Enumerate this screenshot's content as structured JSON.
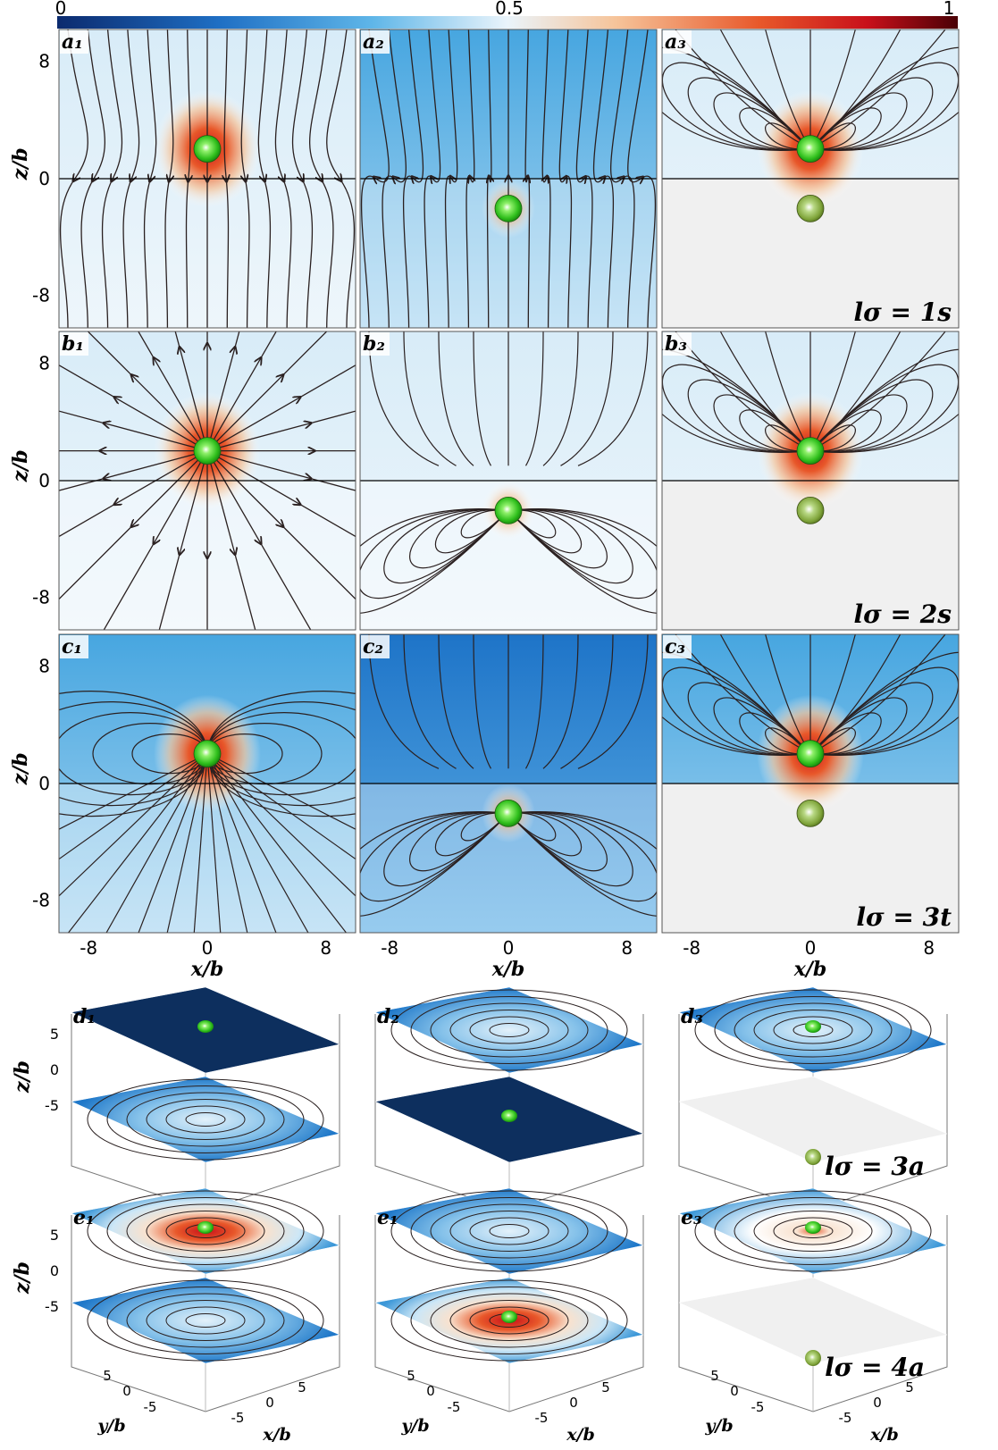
{
  "colorbar": {
    "min_label": "0",
    "mid_label": "0.5",
    "max_label": "1",
    "stops": [
      "#0b2a6e",
      "#1f6fc4",
      "#5fb6e8",
      "#eaf4fb",
      "#f6c49a",
      "#e8582a",
      "#c8101a",
      "#4a0005"
    ]
  },
  "colors": {
    "grid_bg_lower": "#f0f0f0",
    "sphere": "#39c81e",
    "line": "#2a2020"
  },
  "rows": [
    {
      "panels": [
        "a₁",
        "a₂",
        "a₃"
      ],
      "note": "lσ = 1s"
    },
    {
      "panels": [
        "b₁",
        "b₂",
        "b₃"
      ],
      "note": "lσ = 2s"
    },
    {
      "panels": [
        "c₁",
        "c₂",
        "c₃"
      ],
      "note": "lσ = 3t"
    }
  ],
  "xticks": [
    "-8",
    "0",
    "8"
  ],
  "zticks": [
    "8",
    "0",
    "-8"
  ],
  "xlabel": "x/b",
  "zlabel": "z/b",
  "row3d": [
    {
      "panels": [
        "d₁",
        "d₂",
        "d₃"
      ],
      "note": "lσ = 3a"
    },
    {
      "panels": [
        "e₁",
        "e₁",
        "e₃"
      ],
      "note": "lσ = 4a"
    }
  ],
  "zticks3d": [
    "5",
    "0",
    "-5"
  ],
  "yticks3d": [
    "5",
    "0",
    "-5"
  ],
  "xticks3d": [
    "-5",
    "0",
    "5"
  ],
  "ylabel3d": "y/b"
}
